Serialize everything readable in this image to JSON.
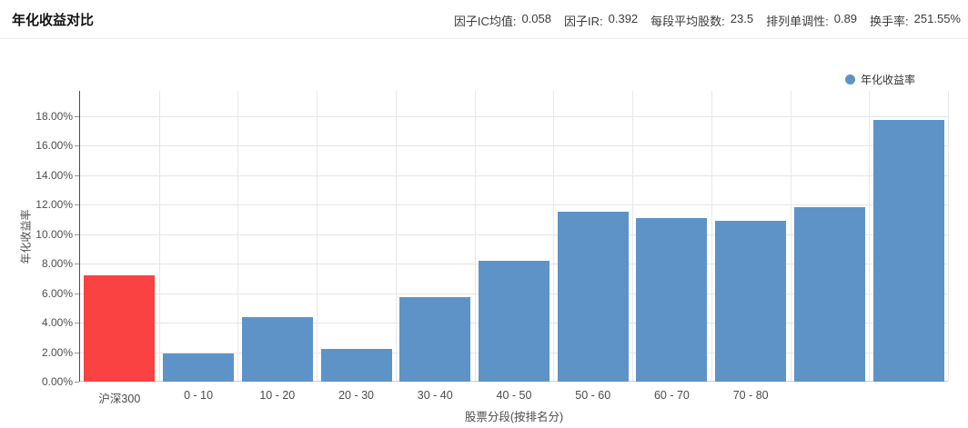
{
  "header": {
    "title": "年化收益对比",
    "stats": [
      {
        "label": "因子IC均值:",
        "value": "0.058"
      },
      {
        "label": "因子IR:",
        "value": "0.392"
      },
      {
        "label": "每段平均股数:",
        "value": "23.5"
      },
      {
        "label": "排列单调性:",
        "value": "0.89"
      },
      {
        "label": "换手率:",
        "value": "251.55%"
      }
    ]
  },
  "legend": {
    "label": "年化收益率",
    "color": "#5e93c8"
  },
  "chart_data": {
    "type": "bar",
    "title": "年化收益对比",
    "categories": [
      "沪深300",
      "0 - 10",
      "10 - 20",
      "20 - 30",
      "30 - 40",
      "40 - 50",
      "50 - 60",
      "60 - 70",
      "70 - 80",
      "",
      ""
    ],
    "values": [
      7.2,
      1.9,
      4.4,
      2.2,
      5.7,
      8.2,
      11.5,
      11.1,
      10.9,
      11.8,
      17.7
    ],
    "unit": "%",
    "series_name": "年化收益率",
    "bar_color_default": "#5e93c8",
    "bar_color_first": "#fa4242",
    "xlabel": "股票分段(按排名分)",
    "ylabel": "年化收益率",
    "ylim": [
      0,
      19.7
    ],
    "yticks": [
      {
        "value": 0,
        "label": "0.00%"
      },
      {
        "value": 2,
        "label": "2.00%"
      },
      {
        "value": 4,
        "label": "4.00%"
      },
      {
        "value": 6,
        "label": "6.00%"
      },
      {
        "value": 8,
        "label": "8.00%"
      },
      {
        "value": 10,
        "label": "10.00%"
      },
      {
        "value": 12,
        "label": "12.00%"
      },
      {
        "value": 14,
        "label": "14.00%"
      },
      {
        "value": 16,
        "label": "16.00%"
      },
      {
        "value": 18,
        "label": "18.00%"
      }
    ],
    "grid": true,
    "legend": [
      {
        "name": "年化收益率",
        "color": "#5e93c8"
      }
    ],
    "legend_position": "top-right"
  }
}
